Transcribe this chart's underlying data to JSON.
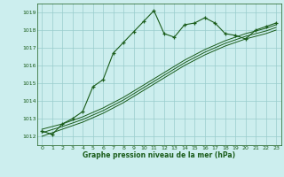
{
  "bg_color": "#cceeee",
  "grid_color": "#99cccc",
  "line_color": "#1a5c1a",
  "text_color": "#1a5c1a",
  "xlabel": "Graphe pression niveau de la mer (hPa)",
  "ylim": [
    1011.5,
    1019.5
  ],
  "xlim": [
    -0.5,
    23.5
  ],
  "yticks": [
    1012,
    1013,
    1014,
    1015,
    1016,
    1017,
    1018,
    1019
  ],
  "xticks": [
    0,
    1,
    2,
    3,
    4,
    5,
    6,
    7,
    8,
    9,
    10,
    11,
    12,
    13,
    14,
    15,
    16,
    17,
    18,
    19,
    20,
    21,
    22,
    23
  ],
  "main_series": [
    1012.3,
    1012.1,
    1012.7,
    1013.0,
    1013.4,
    1014.8,
    1015.2,
    1016.7,
    1017.3,
    1017.9,
    1018.5,
    1019.1,
    1017.8,
    1017.6,
    1018.3,
    1018.4,
    1018.7,
    1018.4,
    1017.8,
    1017.7,
    1017.5,
    1018.0,
    1018.2,
    1018.4
  ],
  "trend1": [
    1012.4,
    1012.55,
    1012.7,
    1012.9,
    1013.1,
    1013.35,
    1013.6,
    1013.9,
    1014.2,
    1014.55,
    1014.9,
    1015.25,
    1015.6,
    1015.95,
    1016.3,
    1016.6,
    1016.9,
    1017.15,
    1017.4,
    1017.6,
    1017.8,
    1017.95,
    1018.1,
    1018.3
  ],
  "trend2": [
    1012.2,
    1012.38,
    1012.55,
    1012.75,
    1012.95,
    1013.2,
    1013.45,
    1013.75,
    1014.05,
    1014.4,
    1014.75,
    1015.1,
    1015.45,
    1015.8,
    1016.15,
    1016.45,
    1016.75,
    1017.0,
    1017.25,
    1017.45,
    1017.65,
    1017.8,
    1017.95,
    1018.15
  ],
  "trend3": [
    1012.0,
    1012.2,
    1012.4,
    1012.6,
    1012.8,
    1013.05,
    1013.3,
    1013.6,
    1013.9,
    1014.25,
    1014.6,
    1014.95,
    1015.3,
    1015.65,
    1016.0,
    1016.3,
    1016.6,
    1016.85,
    1017.1,
    1017.3,
    1017.5,
    1017.65,
    1017.8,
    1018.0
  ]
}
